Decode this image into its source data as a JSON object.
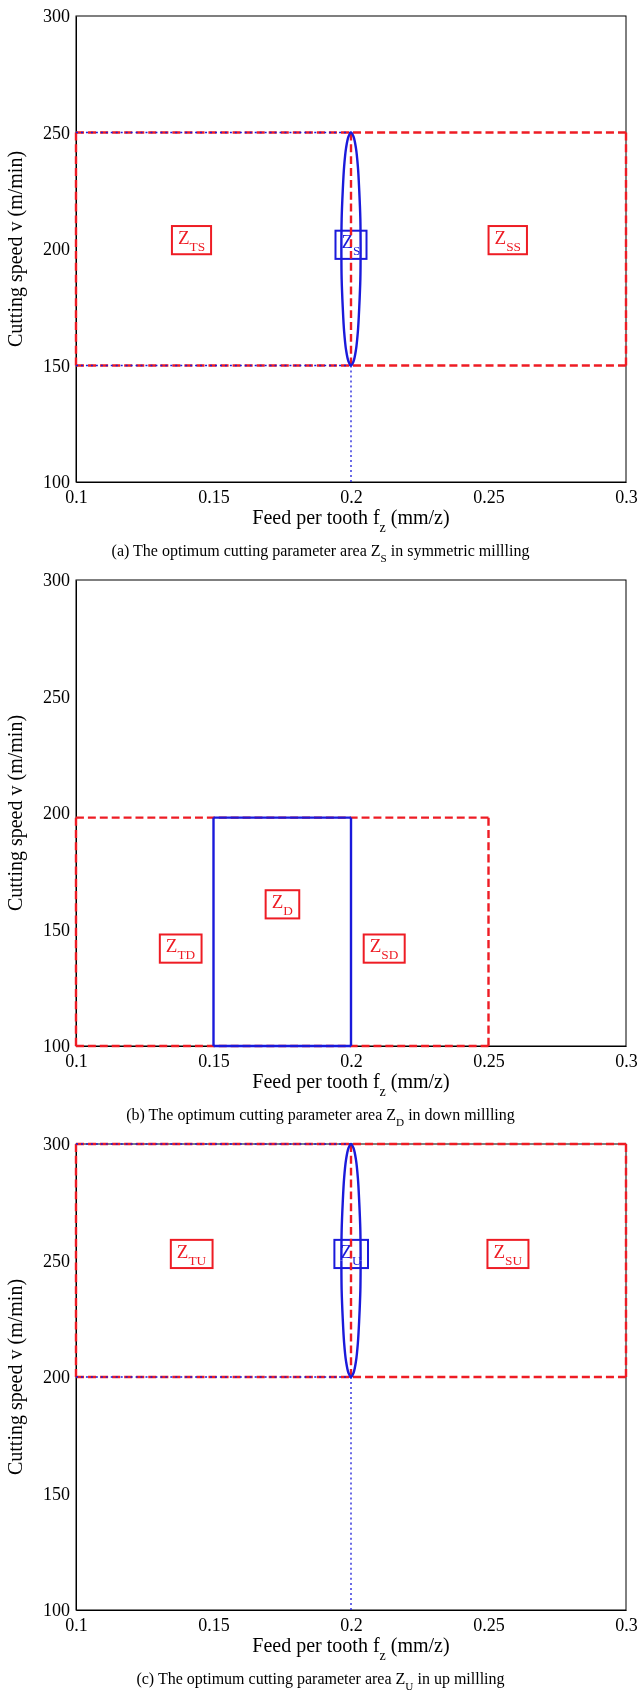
{
  "chart_data": [
    {
      "type": "line",
      "xlabel": "Feed per tooth f$_{z}$ (mm/z)",
      "ylabel": "Cutting speed v (m/min)",
      "xlim": [
        0.1,
        0.3
      ],
      "ylim": [
        100,
        300
      ],
      "xticks": [
        0.1,
        0.15,
        0.2,
        0.25,
        0.3
      ],
      "yticks": [
        100,
        150,
        200,
        250,
        300
      ],
      "series": [
        {
          "color": "#ee1c24",
          "line_style": "dashed",
          "x": [
            0.1,
            0.3
          ],
          "values": [
            150,
            150
          ]
        },
        {
          "color": "#ee1c24",
          "line_style": "dashed",
          "x": [
            0.3,
            0.3
          ],
          "values": [
            150,
            250
          ]
        },
        {
          "color": "#ee1c24",
          "line_style": "dashed",
          "x": [
            0.3,
            0.1
          ],
          "values": [
            250,
            250
          ]
        },
        {
          "color": "#ee1c24",
          "line_style": "dashed",
          "x": [
            0.1,
            0.1
          ],
          "values": [
            250,
            150
          ]
        },
        {
          "color": "#ee1c24",
          "line_style": "dashed",
          "x": [
            0.2,
            0.2
          ],
          "values": [
            150,
            250
          ]
        },
        {
          "color": "#1a1adb",
          "line_style": "dotted",
          "x": [
            0.1,
            0.2
          ],
          "values": [
            250,
            250
          ]
        },
        {
          "color": "#1a1adb",
          "line_style": "dotted",
          "x": [
            0.1,
            0.2
          ],
          "values": [
            150,
            150
          ]
        },
        {
          "color": "#1a1adb",
          "line_style": "dotted",
          "x": [
            0.2,
            0.2
          ],
          "values": [
            100,
            150
          ]
        },
        {
          "color": "#1a1adb",
          "line_style": "solid",
          "x": [
            0.2035,
            0.2034,
            0.203,
            0.2025,
            0.2018,
            0.2009,
            0.2,
            0.1991,
            0.1982,
            0.1975,
            0.197,
            0.1966,
            0.1965
          ],
          "values": [
            200,
            212.9,
            225,
            235.4,
            243.3,
            248.3,
            250,
            248.3,
            243.3,
            235.4,
            225,
            212.9,
            200
          ]
        },
        {
          "color": "#1a1adb",
          "line_style": "solid",
          "x": [
            0.1965,
            0.1966,
            0.197,
            0.1975,
            0.1982,
            0.1991,
            0.2,
            0.2009,
            0.2018,
            0.2025,
            0.203,
            0.2034,
            0.2035
          ],
          "values": [
            200,
            187.1,
            175,
            164.6,
            156.7,
            151.7,
            150,
            151.7,
            156.7,
            164.6,
            175,
            187.1,
            200
          ]
        }
      ],
      "annotations": [
        {
          "text": "Z$_{TS}$",
          "x": 0.142,
          "y": 204
        },
        {
          "text": "Z$_{S}$",
          "x": 0.2,
          "y": 202
        },
        {
          "text": "Z$_{SS}$",
          "x": 0.257,
          "y": 204
        },
        "(a) The optimum cutting parameter area Z$_{S}$ in symmetric millling"
      ]
    },
    {
      "type": "line",
      "xlabel": "Feed per tooth f$_{z}$ (mm/z)",
      "ylabel": "Cutting speed v (m/min)",
      "xlim": [
        0.1,
        0.3
      ],
      "ylim": [
        100,
        300
      ],
      "xticks": [
        0.1,
        0.15,
        0.2,
        0.25,
        0.3
      ],
      "yticks": [
        100,
        150,
        200,
        250,
        300
      ],
      "series": [
        {
          "color": "#ee1c24",
          "line_style": "dashed",
          "x": [
            0.1,
            0.25
          ],
          "values": [
            198,
            198
          ]
        },
        {
          "color": "#ee1c24",
          "line_style": "dashed",
          "x": [
            0.25,
            0.25
          ],
          "values": [
            198,
            100
          ]
        },
        {
          "color": "#ee1c24",
          "line_style": "dashed",
          "x": [
            0.25,
            0.1
          ],
          "values": [
            100,
            100
          ]
        },
        {
          "color": "#ee1c24",
          "line_style": "dashed",
          "x": [
            0.1,
            0.1
          ],
          "values": [
            100,
            198
          ]
        },
        {
          "color": "#1a1adb",
          "line_style": "solid",
          "x": [
            0.15,
            0.2
          ],
          "values": [
            100,
            100
          ]
        },
        {
          "color": "#1a1adb",
          "line_style": "solid",
          "x": [
            0.2,
            0.2
          ],
          "values": [
            100,
            198
          ]
        },
        {
          "color": "#1a1adb",
          "line_style": "solid",
          "x": [
            0.2,
            0.15
          ],
          "values": [
            198,
            198
          ]
        },
        {
          "color": "#1a1adb",
          "line_style": "solid",
          "x": [
            0.15,
            0.15
          ],
          "values": [
            198,
            100
          ]
        }
      ],
      "annotations": [
        {
          "text": "Z$_{D}$",
          "x": 0.175,
          "y": 161
        },
        {
          "text": "Z$_{TD}$",
          "x": 0.138,
          "y": 142
        },
        {
          "text": "Z$_{SD}$",
          "x": 0.212,
          "y": 142
        },
        "(b) The optimum cutting parameter area Z$_{D}$ in down millling"
      ]
    },
    {
      "type": "line",
      "xlabel": "Feed per tooth f$_{z}$ (mm/z)",
      "ylabel": "Cutting speed v (m/min)",
      "xlim": [
        0.1,
        0.3
      ],
      "ylim": [
        100,
        300
      ],
      "xticks": [
        0.1,
        0.15,
        0.2,
        0.25,
        0.3
      ],
      "yticks": [
        100,
        150,
        200,
        250,
        300
      ],
      "series": [
        {
          "color": "#ee1c24",
          "line_style": "dashed",
          "x": [
            0.1,
            0.3
          ],
          "values": [
            200,
            200
          ]
        },
        {
          "color": "#ee1c24",
          "line_style": "dashed",
          "x": [
            0.3,
            0.3
          ],
          "values": [
            200,
            300
          ]
        },
        {
          "color": "#ee1c24",
          "line_style": "dashed",
          "x": [
            0.3,
            0.1
          ],
          "values": [
            300,
            300
          ]
        },
        {
          "color": "#ee1c24",
          "line_style": "dashed",
          "x": [
            0.1,
            0.1
          ],
          "values": [
            300,
            200
          ]
        },
        {
          "color": "#ee1c24",
          "line_style": "dashed",
          "x": [
            0.2,
            0.2
          ],
          "values": [
            200,
            300
          ]
        },
        {
          "color": "#1a1adb",
          "line_style": "dotted",
          "x": [
            0.1,
            0.2
          ],
          "values": [
            300,
            300
          ]
        },
        {
          "color": "#1a1adb",
          "line_style": "dotted",
          "x": [
            0.1,
            0.2
          ],
          "values": [
            200,
            200
          ]
        },
        {
          "color": "#1a1adb",
          "line_style": "dotted",
          "x": [
            0.2,
            0.2
          ],
          "values": [
            100,
            200
          ]
        },
        {
          "color": "#1a1adb",
          "line_style": "solid",
          "x": [
            0.2035,
            0.2034,
            0.203,
            0.2025,
            0.2018,
            0.2009,
            0.2,
            0.1991,
            0.1982,
            0.1975,
            0.197,
            0.1966,
            0.1965
          ],
          "values": [
            250,
            262.9,
            275,
            285.4,
            293.3,
            298.3,
            300,
            298.3,
            293.3,
            285.4,
            275,
            262.9,
            250
          ]
        },
        {
          "color": "#1a1adb",
          "line_style": "solid",
          "x": [
            0.1965,
            0.1966,
            0.197,
            0.1975,
            0.1982,
            0.1991,
            0.2,
            0.2009,
            0.2018,
            0.2025,
            0.203,
            0.2034,
            0.2035
          ],
          "values": [
            250,
            237.1,
            225,
            214.6,
            206.7,
            201.7,
            200,
            201.7,
            206.7,
            214.6,
            225,
            237.1,
            250
          ]
        }
      ],
      "annotations": [
        {
          "text": "Z$_{TU}$",
          "x": 0.142,
          "y": 253
        },
        {
          "text": "Z$_{U}$",
          "x": 0.2,
          "y": 253
        },
        {
          "text": "Z$_{SU}$",
          "x": 0.257,
          "y": 253
        },
        "(c) The optimum cutting parameter area Z$_{U}$ in up millling"
      ]
    }
  ]
}
